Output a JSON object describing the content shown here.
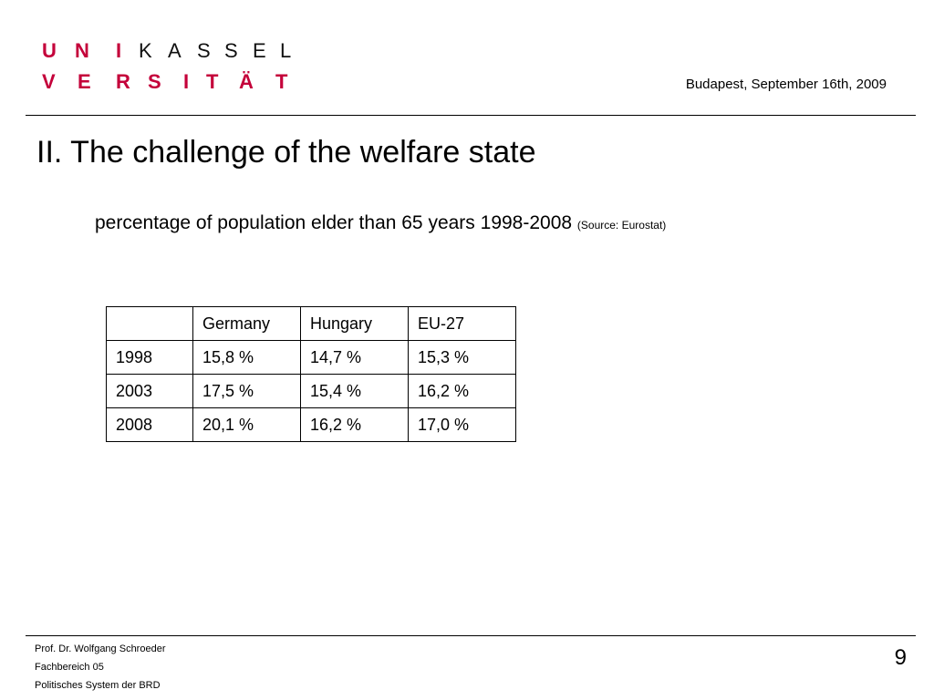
{
  "logo": {
    "row1": [
      "U",
      "N",
      "I",
      "K",
      "A",
      "S",
      "S",
      "E",
      "L"
    ],
    "row2": [
      "V",
      "E",
      "R",
      "S",
      "I",
      "T",
      "Ä",
      "T"
    ],
    "red_color": "#c4003a"
  },
  "header": {
    "date": "Budapest, September 16th, 2009"
  },
  "slide": {
    "title": "II. The challenge of the welfare state",
    "subtitle": "percentage of population elder than 65 years 1998-2008",
    "source": "(Source: Eurostat)"
  },
  "table": {
    "headers": [
      "",
      "Germany",
      "Hungary",
      "EU-27"
    ],
    "rows": [
      [
        "1998",
        "15,8 %",
        "14,7 %",
        "15,3 %"
      ],
      [
        "2003",
        "17,5 %",
        "15,4 %",
        "16,2 %"
      ],
      [
        "2008",
        "20,1 %",
        "16,2 %",
        "17,0 %"
      ]
    ]
  },
  "footer": {
    "author": "Prof. Dr. Wolfgang Schroeder",
    "department": "Fachbereich 05",
    "course": "Politisches System der BRD",
    "page_number": "9"
  }
}
